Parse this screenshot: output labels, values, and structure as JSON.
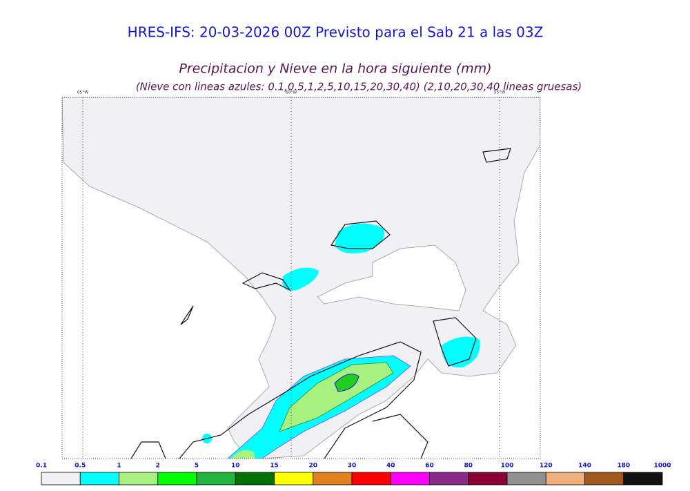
{
  "header": {
    "title": "HRES-IFS: 20-03-2026 00Z Previsto para el Sab 21 a las 03Z",
    "subtitle": "Precipitacion y Nieve en la hora siguiente (mm)",
    "note": "(Nieve con lineas azules: 0.1,0.5,1,2,5,10,15,20,30,40)  (2,10,20,30,40 lineas gruesas)"
  },
  "map": {
    "lon_labels": [
      "65°W",
      "60°W",
      "55°W"
    ]
  },
  "legend": {
    "labels": [
      "0.1",
      "0.5",
      "1",
      "2",
      "5",
      "10",
      "15",
      "20",
      "30",
      "40",
      "60",
      "80",
      "100",
      "120",
      "140",
      "180",
      "1000"
    ],
    "colors": [
      "#f0f0f5",
      "#00ffff",
      "#a8f080",
      "#00ff00",
      "#22b43c",
      "#007000",
      "#ffff00",
      "#e08020",
      "#ff0000",
      "#ff00ff",
      "#8a2a8a",
      "#8a0032",
      "#909090",
      "#f0b07c",
      "#a05a1e",
      "#111111"
    ]
  }
}
